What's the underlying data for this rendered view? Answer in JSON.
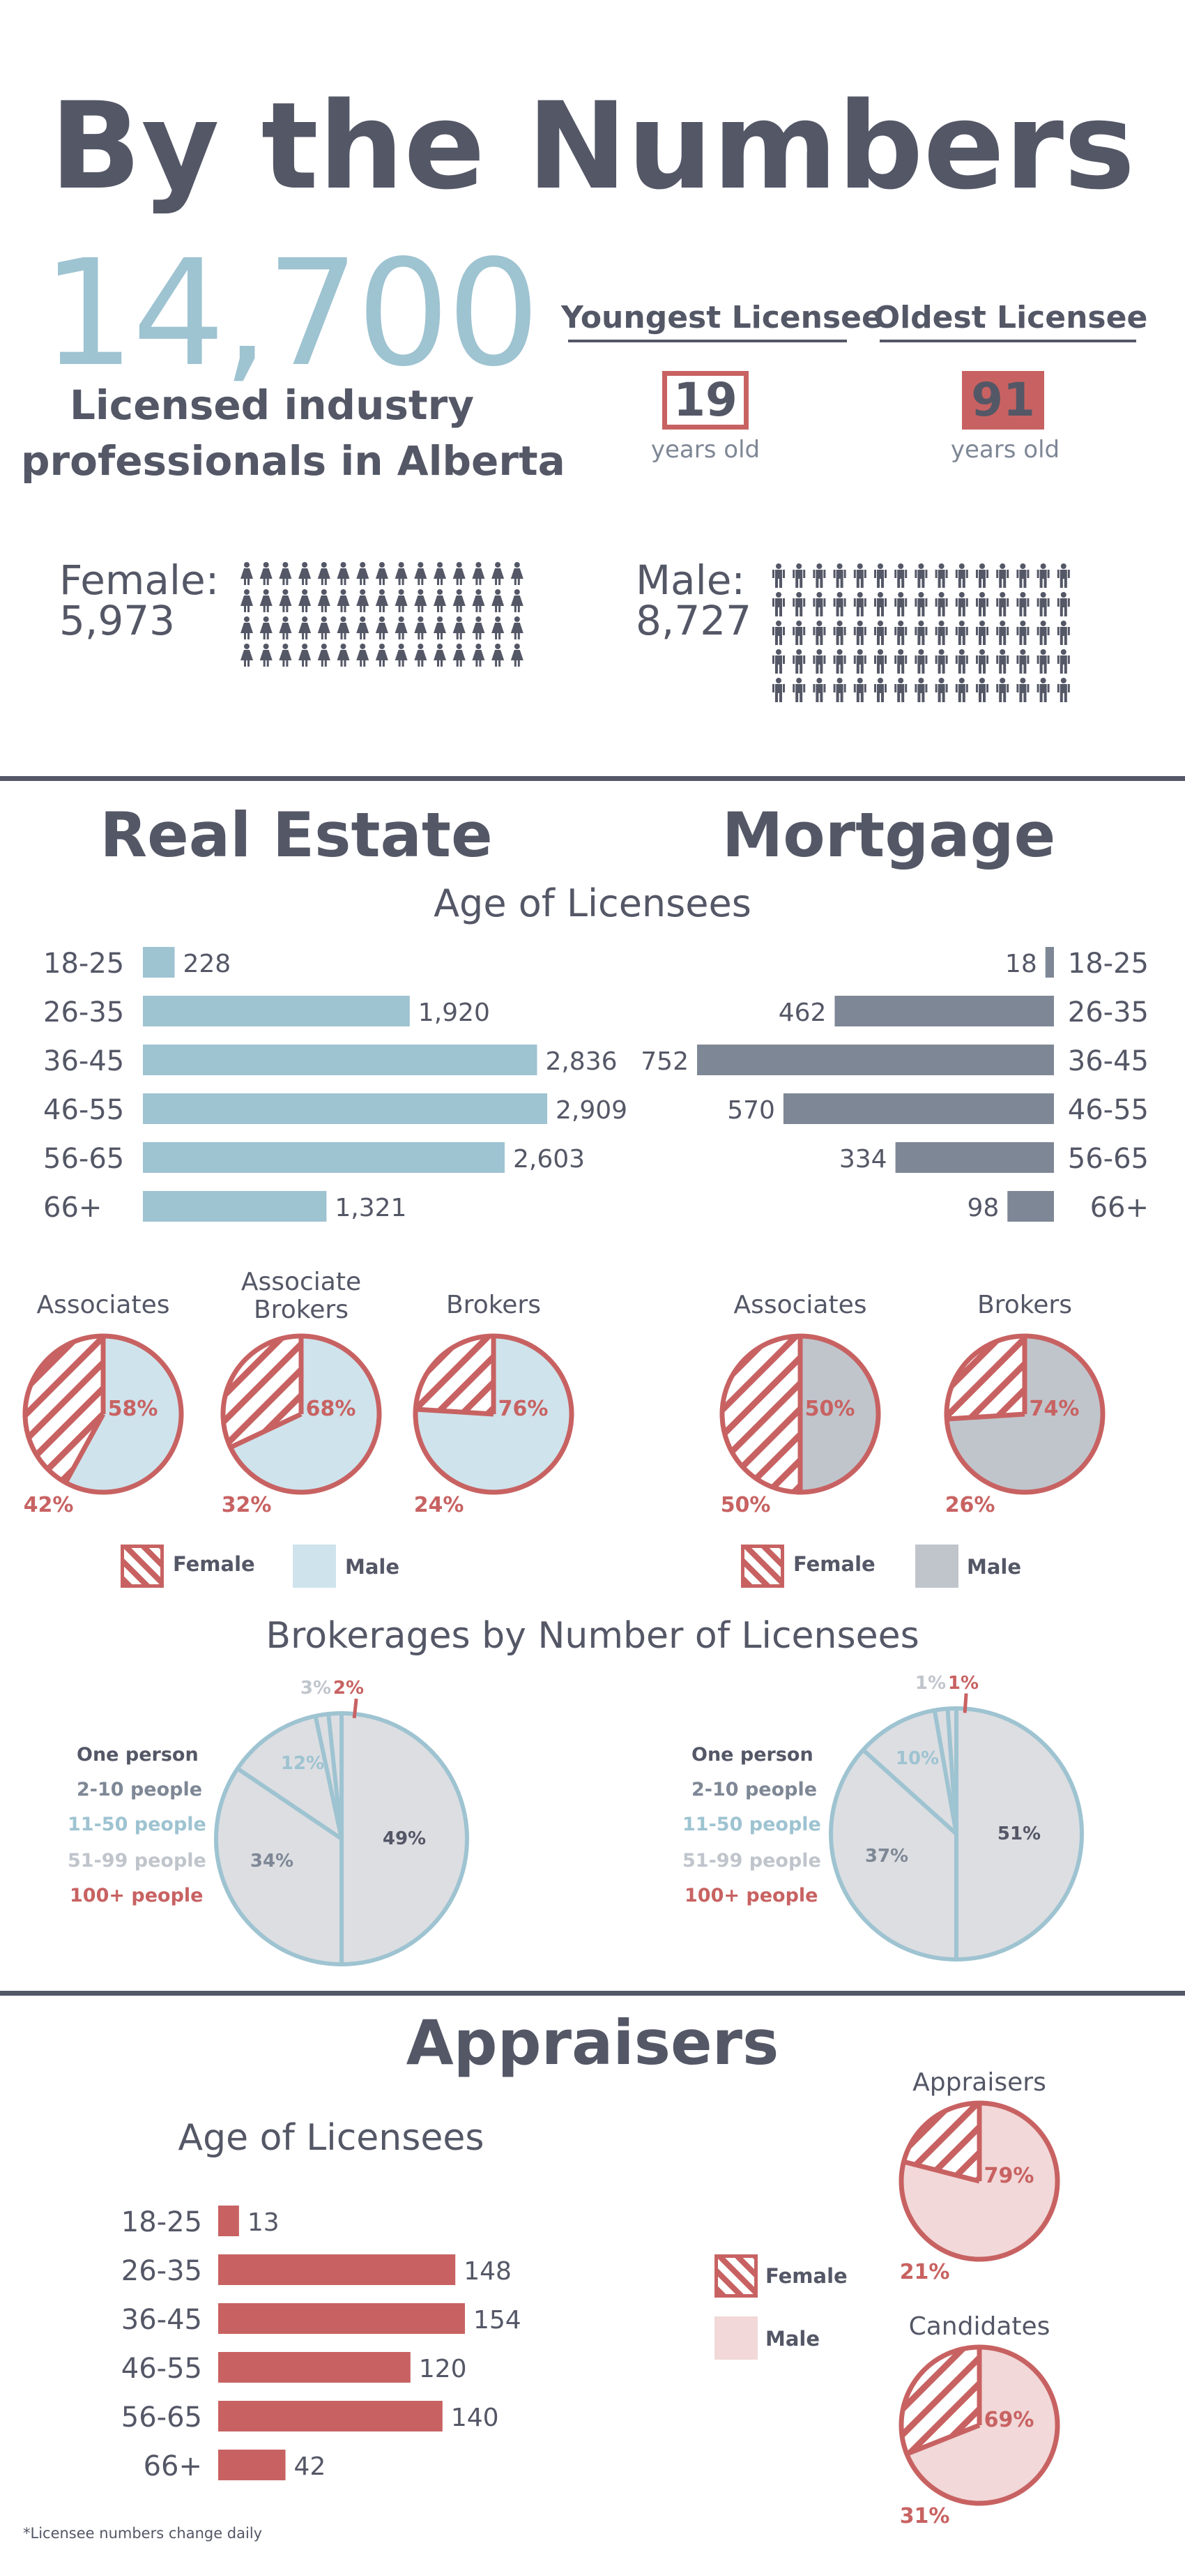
{
  "header": {
    "title": "By the Numbers",
    "total": "14,700",
    "total_label_1": "Licensed industry",
    "total_label_2": "professionals in Alberta",
    "youngest_label": "Youngest Licensee",
    "youngest_value": "19",
    "oldest_label": "Oldest Licensee",
    "oldest_value": "91",
    "years_old": "years old",
    "female_label": "Female:",
    "female_value": "5,973",
    "male_label": "Male:",
    "male_value": "8,727"
  },
  "sections": {
    "real_estate": "Real Estate",
    "mortgage": "Mortgage",
    "age_of_licensees": "Age of Licensees",
    "brokerages_title": "Brokerages by Number of Licensees",
    "appraisers": "Appraisers",
    "footnote": "*Licensee numbers change daily"
  },
  "legend": {
    "female": "Female",
    "male": "Male",
    "brokerage_items": [
      "One person",
      "2-10 people",
      "11-50 people",
      "51-99 people",
      "100+ people"
    ]
  },
  "colors": {
    "dark": "#545766",
    "blue": "#9ec3d1",
    "lightblue": "#cfe3ec",
    "red": "#c86262",
    "grey": "#7e8795",
    "lightgrey": "#c0c5cc",
    "pink": "#f2d8d8",
    "piegrey": "#dcdee2"
  },
  "chart_data": [
    {
      "type": "bar",
      "name": "real-estate-age",
      "categories": [
        "18-25",
        "26-35",
        "36-45",
        "46-55",
        "56-65",
        "66+"
      ],
      "values": [
        228,
        1920,
        2836,
        2909,
        2603,
        1321
      ],
      "value_labels": [
        "228",
        "1,920",
        "2,836",
        "2,909",
        "2,603",
        "1,321"
      ]
    },
    {
      "type": "bar",
      "name": "mortgage-age",
      "categories": [
        "18-25",
        "26-35",
        "36-45",
        "46-55",
        "56-65",
        "66+"
      ],
      "values": [
        18,
        462,
        752,
        570,
        334,
        98
      ],
      "value_labels": [
        "18",
        "462",
        "752",
        "570",
        "334",
        "98"
      ]
    },
    {
      "type": "pie",
      "name": "real-estate-gender",
      "charts": [
        {
          "label": [
            "Associates"
          ],
          "female": 42,
          "male": 58
        },
        {
          "label": [
            "Associate",
            "Brokers"
          ],
          "female": 32,
          "male": 68
        },
        {
          "label": [
            "Brokers"
          ],
          "female": 24,
          "male": 76
        }
      ]
    },
    {
      "type": "pie",
      "name": "mortgage-gender",
      "charts": [
        {
          "label": [
            "Associates"
          ],
          "female": 50,
          "male": 50
        },
        {
          "label": [
            "Brokers"
          ],
          "female": 26,
          "male": 74
        }
      ]
    },
    {
      "type": "pie",
      "name": "real-estate-brokerages",
      "categories": [
        "One person",
        "2-10 people",
        "11-50 people",
        "51-99 people",
        "100+ people"
      ],
      "values": [
        null,
        34,
        12,
        3,
        2
      ],
      "labels": [
        "49%",
        "34%",
        "12%",
        "3%",
        "2%"
      ],
      "big_slice": 49
    },
    {
      "type": "pie",
      "name": "mortgage-brokerages",
      "categories": [
        "One person",
        "2-10 people",
        "11-50 people",
        "51-99 people",
        "100+ people"
      ],
      "labels": [
        "51%",
        "37%",
        "10%",
        "1%",
        "1%"
      ],
      "big_slice": 51
    },
    {
      "type": "bar",
      "name": "appraisers-age",
      "categories": [
        "18-25",
        "26-35",
        "36-45",
        "46-55",
        "56-65",
        "66+"
      ],
      "values": [
        13,
        148,
        154,
        120,
        140,
        42
      ],
      "value_labels": [
        "13",
        "148",
        "154",
        "120",
        "140",
        "42"
      ]
    },
    {
      "type": "pie",
      "name": "appraisers-gender",
      "charts": [
        {
          "label": [
            "Appraisers"
          ],
          "female": 21,
          "male": 79
        },
        {
          "label": [
            "Candidates"
          ],
          "female": 31,
          "male": 69
        }
      ]
    }
  ]
}
